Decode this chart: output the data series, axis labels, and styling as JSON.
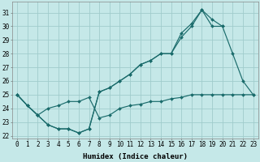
{
  "xlabel": "Humidex (Indice chaleur)",
  "background_color": "#c5e8e8",
  "grid_color": "#a0cccc",
  "line_color": "#1a6b6b",
  "xlim": [
    -0.5,
    23.5
  ],
  "ylim": [
    21.8,
    31.8
  ],
  "xticks": [
    0,
    1,
    2,
    3,
    4,
    5,
    6,
    7,
    8,
    9,
    10,
    11,
    12,
    13,
    14,
    15,
    16,
    17,
    18,
    19,
    20,
    21,
    22,
    23
  ],
  "yticks": [
    22,
    23,
    24,
    25,
    26,
    27,
    28,
    29,
    30,
    31
  ],
  "series1_x": [
    0,
    1,
    2,
    3,
    4,
    5,
    6,
    7,
    8,
    9,
    10,
    11,
    12,
    13,
    14,
    15,
    16,
    17,
    18,
    19,
    20,
    21,
    22,
    23
  ],
  "series1_y": [
    25.0,
    24.2,
    23.5,
    22.8,
    22.5,
    22.5,
    22.2,
    22.5,
    25.2,
    25.5,
    26.0,
    26.5,
    27.2,
    27.5,
    28.0,
    28.0,
    29.2,
    30.0,
    31.2,
    30.5,
    30.0,
    28.0,
    26.0,
    25.0
  ],
  "series2_x": [
    0,
    1,
    2,
    3,
    4,
    5,
    6,
    7,
    8,
    9,
    10,
    11,
    12,
    13,
    14,
    15,
    16,
    17,
    18,
    19,
    20
  ],
  "series2_y": [
    25.0,
    24.2,
    23.5,
    22.8,
    22.5,
    22.5,
    22.2,
    22.5,
    25.2,
    25.5,
    26.0,
    26.5,
    27.2,
    27.5,
    28.0,
    28.0,
    29.5,
    30.2,
    31.2,
    30.0,
    30.0
  ],
  "series3_x": [
    0,
    1,
    2,
    3,
    4,
    5,
    6,
    7,
    8,
    9,
    10,
    11,
    12,
    13,
    14,
    15,
    16,
    17,
    18,
    19,
    20,
    21,
    22,
    23
  ],
  "series3_y": [
    25.0,
    24.2,
    23.5,
    24.0,
    24.2,
    24.5,
    24.5,
    24.8,
    23.3,
    23.5,
    24.0,
    24.2,
    24.3,
    24.5,
    24.5,
    24.7,
    24.8,
    25.0,
    25.0,
    25.0,
    25.0,
    25.0,
    25.0,
    25.0
  ],
  "xlabel_fontsize": 6.5,
  "tick_fontsize": 5.5
}
